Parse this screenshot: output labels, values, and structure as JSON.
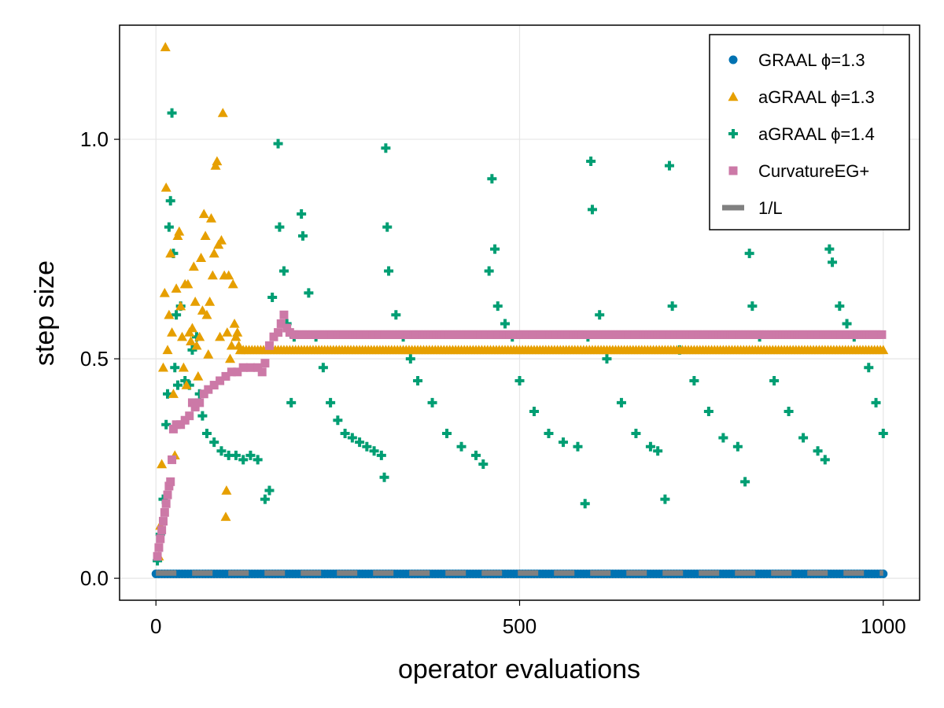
{
  "chart_data": {
    "type": "scatter",
    "xlabel": "operator evaluations",
    "ylabel": "step size",
    "xlim": [
      -50,
      1050
    ],
    "ylim": [
      -0.05,
      1.26
    ],
    "x_ticks": [
      0,
      500,
      1000
    ],
    "x_tick_labels": [
      "0",
      "500",
      "1000"
    ],
    "y_ticks": [
      0.0,
      0.5,
      1.0
    ],
    "y_tick_labels": [
      "0.0",
      "0.5",
      "1.0"
    ],
    "grid": true,
    "legend_position": "top-right",
    "series": [
      {
        "name": "GRAAL ϕ=1.3",
        "marker": "circle",
        "color": "#0072b2",
        "description": "constant",
        "y_constant": 0.01,
        "x_range": [
          0,
          1000
        ]
      },
      {
        "name": "aGRAAL ϕ=1.3",
        "marker": "triangle",
        "color": "#e69f00",
        "points": [
          [
            4,
            0.05
          ],
          [
            6,
            0.12
          ],
          [
            8,
            0.26
          ],
          [
            10,
            0.48
          ],
          [
            12,
            0.65
          ],
          [
            13,
            1.21
          ],
          [
            14,
            0.89
          ],
          [
            16,
            0.52
          ],
          [
            18,
            0.6
          ],
          [
            20,
            0.74
          ],
          [
            22,
            0.56
          ],
          [
            24,
            0.42
          ],
          [
            26,
            0.28
          ],
          [
            28,
            0.66
          ],
          [
            30,
            0.78
          ],
          [
            32,
            0.79
          ],
          [
            34,
            0.62
          ],
          [
            36,
            0.55
          ],
          [
            38,
            0.48
          ],
          [
            40,
            0.67
          ],
          [
            42,
            0.44
          ],
          [
            44,
            0.67
          ],
          [
            46,
            0.56
          ],
          [
            48,
            0.54
          ],
          [
            50,
            0.57
          ],
          [
            52,
            0.71
          ],
          [
            54,
            0.63
          ],
          [
            56,
            0.53
          ],
          [
            58,
            0.46
          ],
          [
            60,
            0.55
          ],
          [
            62,
            0.73
          ],
          [
            64,
            0.61
          ],
          [
            66,
            0.83
          ],
          [
            68,
            0.78
          ],
          [
            70,
            0.6
          ],
          [
            72,
            0.51
          ],
          [
            74,
            0.63
          ],
          [
            76,
            0.82
          ],
          [
            78,
            0.69
          ],
          [
            80,
            0.74
          ],
          [
            82,
            0.94
          ],
          [
            84,
            0.95
          ],
          [
            86,
            0.76
          ],
          [
            88,
            0.55
          ],
          [
            90,
            0.77
          ],
          [
            92,
            1.06
          ],
          [
            94,
            0.69
          ],
          [
            96,
            0.14
          ],
          [
            97,
            0.2
          ],
          [
            98,
            0.56
          ],
          [
            100,
            0.69
          ],
          [
            102,
            0.5
          ],
          [
            104,
            0.53
          ],
          [
            106,
            0.67
          ],
          [
            108,
            0.58
          ],
          [
            110,
            0.55
          ],
          [
            112,
            0.56
          ],
          [
            114,
            0.53
          ],
          [
            116,
            0.52
          ]
        ],
        "steady_value": 0.52,
        "steady_x_range": [
          116,
          1000
        ]
      },
      {
        "name": "aGRAAL ϕ=1.4",
        "marker": "plus",
        "color": "#009e73",
        "description": "oscillating branches",
        "points": [
          [
            2,
            0.04
          ],
          [
            6,
            0.1
          ],
          [
            10,
            0.18
          ],
          [
            14,
            0.35
          ],
          [
            16,
            0.42
          ],
          [
            18,
            0.8
          ],
          [
            20,
            0.86
          ],
          [
            22,
            1.06
          ],
          [
            24,
            0.74
          ],
          [
            26,
            0.48
          ],
          [
            28,
            0.6
          ],
          [
            30,
            0.44
          ],
          [
            34,
            0.62
          ],
          [
            40,
            0.45
          ],
          [
            46,
            0.44
          ],
          [
            50,
            0.52
          ],
          [
            56,
            0.55
          ],
          [
            60,
            0.42
          ],
          [
            64,
            0.37
          ],
          [
            70,
            0.33
          ],
          [
            80,
            0.31
          ],
          [
            90,
            0.29
          ],
          [
            100,
            0.28
          ],
          [
            110,
            0.28
          ],
          [
            120,
            0.27
          ],
          [
            130,
            0.28
          ],
          [
            140,
            0.27
          ],
          [
            150,
            0.18
          ],
          [
            156,
            0.2
          ],
          [
            160,
            0.64
          ],
          [
            168,
            0.99
          ],
          [
            170,
            0.8
          ],
          [
            176,
            0.7
          ],
          [
            180,
            0.58
          ],
          [
            186,
            0.4
          ],
          [
            190,
            0.55
          ],
          [
            200,
            0.83
          ],
          [
            202,
            0.78
          ],
          [
            210,
            0.65
          ],
          [
            220,
            0.55
          ],
          [
            230,
            0.48
          ],
          [
            240,
            0.4
          ],
          [
            250,
            0.36
          ],
          [
            260,
            0.33
          ],
          [
            270,
            0.32
          ],
          [
            280,
            0.31
          ],
          [
            290,
            0.3
          ],
          [
            300,
            0.29
          ],
          [
            310,
            0.28
          ],
          [
            314,
            0.23
          ],
          [
            316,
            0.98
          ],
          [
            318,
            0.8
          ],
          [
            320,
            0.7
          ],
          [
            330,
            0.6
          ],
          [
            340,
            0.55
          ],
          [
            350,
            0.5
          ],
          [
            360,
            0.45
          ],
          [
            380,
            0.4
          ],
          [
            400,
            0.33
          ],
          [
            420,
            0.3
          ],
          [
            440,
            0.28
          ],
          [
            450,
            0.26
          ],
          [
            458,
            0.7
          ],
          [
            462,
            0.91
          ],
          [
            466,
            0.75
          ],
          [
            470,
            0.62
          ],
          [
            480,
            0.58
          ],
          [
            490,
            0.55
          ],
          [
            500,
            0.45
          ],
          [
            520,
            0.38
          ],
          [
            540,
            0.33
          ],
          [
            560,
            0.31
          ],
          [
            580,
            0.3
          ],
          [
            590,
            0.17
          ],
          [
            594,
            0.55
          ],
          [
            598,
            0.95
          ],
          [
            600,
            0.84
          ],
          [
            610,
            0.6
          ],
          [
            620,
            0.5
          ],
          [
            640,
            0.4
          ],
          [
            660,
            0.33
          ],
          [
            680,
            0.3
          ],
          [
            690,
            0.29
          ],
          [
            700,
            0.18
          ],
          [
            706,
            0.94
          ],
          [
            710,
            0.62
          ],
          [
            720,
            0.52
          ],
          [
            740,
            0.45
          ],
          [
            760,
            0.38
          ],
          [
            780,
            0.32
          ],
          [
            800,
            0.3
          ],
          [
            810,
            0.22
          ],
          [
            816,
            0.74
          ],
          [
            820,
            0.62
          ],
          [
            830,
            0.55
          ],
          [
            850,
            0.45
          ],
          [
            870,
            0.38
          ],
          [
            890,
            0.32
          ],
          [
            910,
            0.29
          ],
          [
            920,
            0.27
          ],
          [
            926,
            0.75
          ],
          [
            930,
            0.72
          ],
          [
            940,
            0.62
          ],
          [
            950,
            0.58
          ],
          [
            960,
            0.55
          ],
          [
            980,
            0.48
          ],
          [
            990,
            0.4
          ],
          [
            1000,
            0.33
          ]
        ]
      },
      {
        "name": "CurvatureEG+",
        "marker": "square",
        "color": "#cc79a7",
        "points": [
          [
            2,
            0.05
          ],
          [
            4,
            0.07
          ],
          [
            6,
            0.09
          ],
          [
            8,
            0.11
          ],
          [
            10,
            0.13
          ],
          [
            12,
            0.15
          ],
          [
            14,
            0.17
          ],
          [
            16,
            0.19
          ],
          [
            18,
            0.21
          ],
          [
            20,
            0.22
          ],
          [
            22,
            0.27
          ],
          [
            24,
            0.34
          ],
          [
            28,
            0.35
          ],
          [
            34,
            0.35
          ],
          [
            40,
            0.36
          ],
          [
            46,
            0.37
          ],
          [
            50,
            0.4
          ],
          [
            54,
            0.39
          ],
          [
            60,
            0.4
          ],
          [
            66,
            0.42
          ],
          [
            72,
            0.43
          ],
          [
            80,
            0.44
          ],
          [
            88,
            0.45
          ],
          [
            96,
            0.46
          ],
          [
            104,
            0.47
          ],
          [
            112,
            0.47
          ],
          [
            120,
            0.48
          ],
          [
            130,
            0.48
          ],
          [
            140,
            0.48
          ],
          [
            146,
            0.47
          ],
          [
            150,
            0.49
          ],
          [
            156,
            0.53
          ],
          [
            162,
            0.55
          ],
          [
            168,
            0.56
          ],
          [
            172,
            0.58
          ],
          [
            176,
            0.6
          ],
          [
            180,
            0.57
          ],
          [
            184,
            0.56
          ],
          [
            190,
            0.555
          ]
        ],
        "steady_value": 0.555,
        "steady_x_range": [
          190,
          1000
        ]
      },
      {
        "name": "1/L",
        "marker": "dashed-line",
        "color": "#808080",
        "y_constant": 0.012,
        "x_range": [
          0,
          1000
        ]
      }
    ]
  }
}
